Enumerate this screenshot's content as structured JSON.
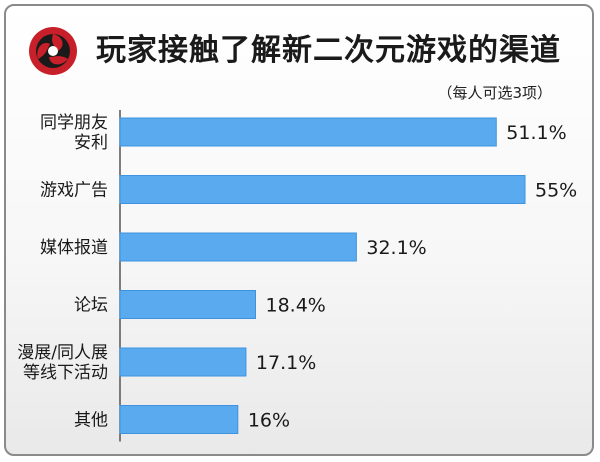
{
  "header": {
    "title": "玩家接触了解新二次元游戏的渠道",
    "subtitle": "（每人可选3项）",
    "logo_icon": "red-swirl-logo-icon"
  },
  "colors": {
    "bar": "#5aaaf0",
    "bar_edge": "#3f93de",
    "axis": "#555555",
    "logo": "#c8202a",
    "text": "#1a1a1a"
  },
  "chart_data": {
    "type": "bar",
    "orientation": "horizontal",
    "title": "玩家接触了解新二次元游戏的渠道",
    "subtitle": "（每人可选3项）",
    "categories": [
      [
        "同学朋友",
        "安利"
      ],
      [
        "游戏广告"
      ],
      [
        "媒体报道"
      ],
      [
        "论坛"
      ],
      [
        "漫展/同人展",
        "等线下活动"
      ],
      [
        "其他"
      ]
    ],
    "values": [
      51.1,
      55,
      32.1,
      18.4,
      17.1,
      16
    ],
    "value_labels": [
      "51.1%",
      "55%",
      "32.1%",
      "18.4%",
      "17.1%",
      "16%"
    ],
    "unit": "%",
    "xlim": [
      0,
      55
    ],
    "grid": false,
    "legend": "none"
  }
}
